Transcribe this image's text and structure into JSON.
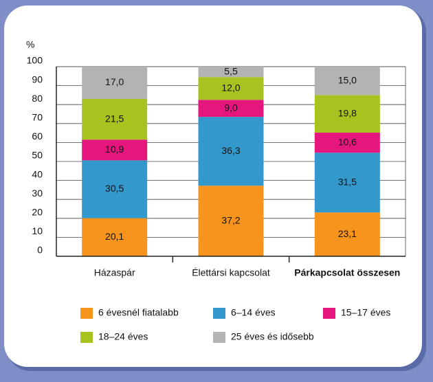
{
  "chart_data": {
    "type": "stacked_bar",
    "y_label": "%",
    "categories": [
      "Házaspár",
      "Élettársi kapcsolat",
      "Párkapcsolat összesen"
    ],
    "series": [
      {
        "name": "6 évesnél fiatalabb",
        "color": "#f7941d",
        "values": [
          20.1,
          37.2,
          23.1
        ],
        "value_labels": [
          "20,1",
          "37,2",
          "23,1"
        ]
      },
      {
        "name": "6–14 éves",
        "color": "#3399cc",
        "values": [
          30.5,
          36.3,
          31.5
        ],
        "value_labels": [
          "30,5",
          "36,3",
          "31,5"
        ]
      },
      {
        "name": "15–17 éves",
        "color": "#e5177f",
        "values": [
          10.9,
          9.0,
          10.6
        ],
        "value_labels": [
          "10,9",
          "9,0",
          "10,6"
        ]
      },
      {
        "name": "18–24 éves",
        "color": "#a8c320",
        "values": [
          21.5,
          12.0,
          19.8
        ],
        "value_labels": [
          "21,5",
          "12,0",
          "19,8"
        ]
      },
      {
        "name": "25 éves és idősebb",
        "color": "#b3b3b3",
        "values": [
          17.0,
          5.5,
          15.0
        ],
        "value_labels": [
          "17,0",
          "5,5",
          "15,0"
        ]
      }
    ],
    "ylim": [
      0,
      100
    ],
    "yticks": [
      0,
      10,
      20,
      30,
      40,
      50,
      60,
      70,
      80,
      90,
      100
    ],
    "grid": true
  }
}
